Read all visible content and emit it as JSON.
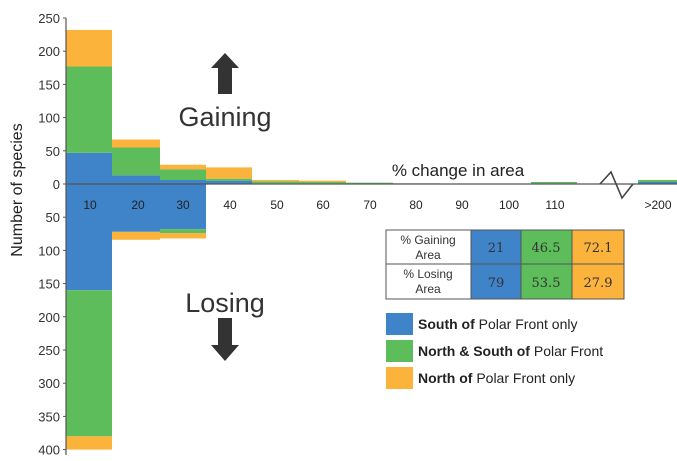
{
  "chart_data": {
    "type": "bar",
    "ylabel": "Number of species",
    "xlabel": "% change in area",
    "gaining_label": "Gaining",
    "losing_label": "Losing",
    "categories": [
      "10",
      "20",
      "30",
      "40",
      "50",
      "60",
      "70",
      "80",
      "90",
      "100",
      "110",
      ">200"
    ],
    "y_ticks_up": [
      "0",
      "50",
      "100",
      "150",
      "200",
      "250"
    ],
    "y_ticks_down": [
      "50",
      "100",
      "150",
      "200",
      "250",
      "300",
      "350",
      "400"
    ],
    "ylim": [
      -400,
      250
    ],
    "colors": {
      "south": "#3f83c9",
      "both": "#5cbd5a",
      "north": "#fbb33b"
    },
    "series": [
      {
        "name": "South of Polar Front only",
        "gain": [
          47,
          13,
          6,
          5,
          1,
          1,
          0,
          0,
          0,
          0,
          1,
          3
        ],
        "loss": [
          160,
          72,
          68,
          0,
          0,
          0,
          0,
          0,
          0,
          0,
          0,
          0
        ]
      },
      {
        "name": "North & South of Polar Front",
        "gain": [
          130,
          42,
          16,
          3,
          3,
          2,
          2,
          1,
          0,
          0,
          2,
          3
        ],
        "loss": [
          220,
          0,
          6,
          0,
          0,
          0,
          0,
          0,
          0,
          0,
          0,
          0
        ]
      },
      {
        "name": "North of Polar Front only",
        "gain": [
          55,
          12,
          7,
          17,
          2,
          2,
          0,
          0,
          0,
          0,
          0,
          0
        ],
        "loss": [
          20,
          12,
          8,
          0,
          0,
          0,
          0,
          0,
          0,
          0,
          0,
          0
        ]
      }
    ],
    "table": {
      "rows": [
        {
          "label_line1": "% Gaining",
          "label_line2": "Area",
          "values": [
            "21",
            "46.5",
            "72.1"
          ]
        },
        {
          "label_line1": "% Losing",
          "label_line2": "Area",
          "values": [
            "79",
            "53.5",
            "27.9"
          ]
        }
      ]
    },
    "legend": [
      {
        "bold": "South of",
        "rest": " Polar Front only"
      },
      {
        "bold": "North & South of",
        "rest": " Polar Front"
      },
      {
        "bold": "North of",
        "rest": " Polar Front only"
      }
    ]
  }
}
